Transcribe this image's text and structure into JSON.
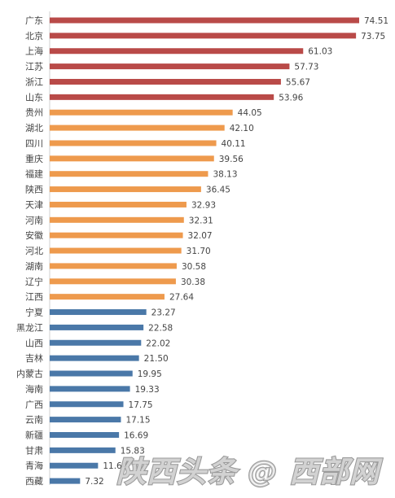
{
  "chart_data": {
    "type": "bar",
    "orientation": "horizontal",
    "title": "",
    "xlabel": "",
    "ylabel": "",
    "categories": [
      "广东",
      "北京",
      "上海",
      "江苏",
      "浙江",
      "山东",
      "贵州",
      "湖北",
      "四川",
      "重庆",
      "福建",
      "陕西",
      "天津",
      "河南",
      "安徽",
      "河北",
      "湖南",
      "辽宁",
      "江西",
      "宁夏",
      "黑龙江",
      "山西",
      "吉林",
      "内蒙古",
      "海南",
      "广西",
      "云南",
      "新疆",
      "甘肃",
      "青海",
      "西藏"
    ],
    "values": [
      74.51,
      73.75,
      61.03,
      57.73,
      55.67,
      53.96,
      44.05,
      42.1,
      40.11,
      39.56,
      38.13,
      36.45,
      32.93,
      32.31,
      32.07,
      31.7,
      30.58,
      30.38,
      27.64,
      23.27,
      22.58,
      22.02,
      21.5,
      19.95,
      19.33,
      17.75,
      17.15,
      16.69,
      15.83,
      11.64,
      7.32
    ],
    "value_labels": [
      "74.51",
      "73.75",
      "61.03",
      "57.73",
      "55.67",
      "53.96",
      "44.05",
      "42.10",
      "40.11",
      "39.56",
      "38.13",
      "36.45",
      "32.93",
      "32.31",
      "32.07",
      "31.70",
      "30.58",
      "30.38",
      "27.64",
      "23.27",
      "22.58",
      "22.02",
      "21.50",
      "19.95",
      "19.33",
      "17.75",
      "17.15",
      "16.69",
      "15.83",
      "11.64",
      "7.32"
    ],
    "color_groups": [
      "top",
      "top",
      "top",
      "top",
      "top",
      "top",
      "mid",
      "mid",
      "mid",
      "mid",
      "mid",
      "mid",
      "mid",
      "mid",
      "mid",
      "mid",
      "mid",
      "mid",
      "mid",
      "low",
      "low",
      "low",
      "low",
      "low",
      "low",
      "low",
      "low",
      "low",
      "low",
      "low",
      "low"
    ],
    "colors": {
      "top": "#b94a48",
      "mid": "#ee9a4d",
      "low": "#4a78a8"
    },
    "xlim": [
      0,
      80
    ],
    "grid": false,
    "legend": "none"
  },
  "watermark": {
    "text": "陕西头条 @ 西部网"
  }
}
